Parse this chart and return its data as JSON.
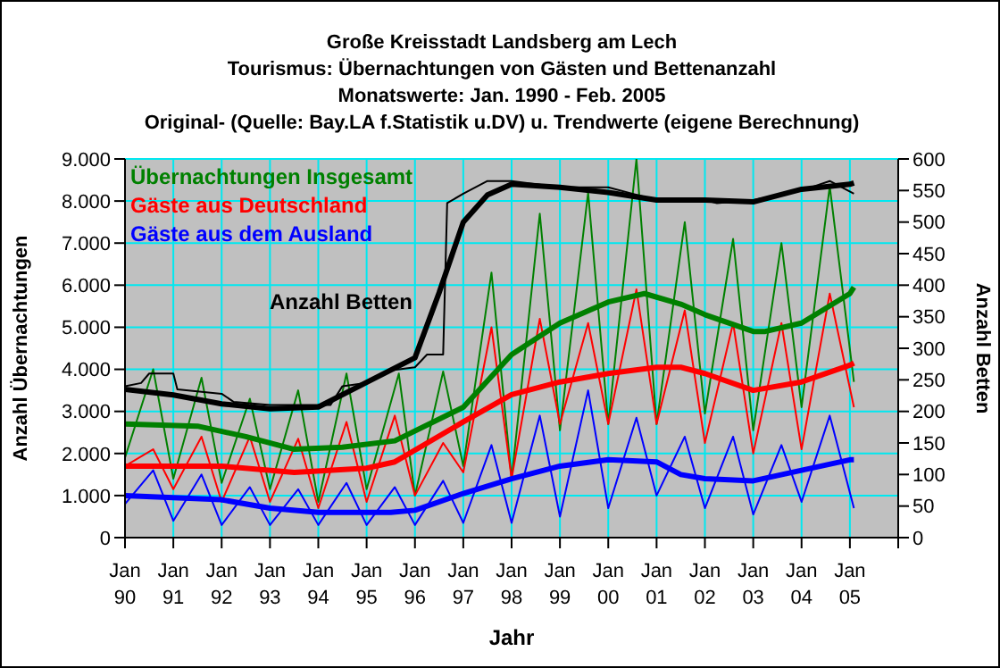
{
  "chart_data": {
    "type": "line",
    "title": "Große Kreisstadt Landsberg am Lech",
    "subtitle": "Tourismus:  Übernachtungen von Gästen und Bettenanzahl\nMonatswerte: Jan. 1990 - Feb. 2005\nOriginal- (Quelle: Bay.LA f.Statistik u.DV) u. Trendwerte (eigene Berechnung)",
    "xlabel": "Jahr",
    "ylabel": "Anzahl Übernachtungen",
    "y2label": "Anzahl Betten",
    "xlim": [
      "1990-01",
      "2006-01"
    ],
    "xticks": [
      {
        "value": "1990-01",
        "label": "Jan 90"
      },
      {
        "value": "1991-01",
        "label": "Jan 91"
      },
      {
        "value": "1992-01",
        "label": "Jan 92"
      },
      {
        "value": "1993-01",
        "label": "Jan 93"
      },
      {
        "value": "1994-01",
        "label": "Jan 94"
      },
      {
        "value": "1995-01",
        "label": "Jan 95"
      },
      {
        "value": "1996-01",
        "label": "Jan 96"
      },
      {
        "value": "1997-01",
        "label": "Jan 97"
      },
      {
        "value": "1998-01",
        "label": "Jan 98"
      },
      {
        "value": "1999-01",
        "label": "Jan 99"
      },
      {
        "value": "2000-01",
        "label": "Jan 00"
      },
      {
        "value": "2001-01",
        "label": "Jan 01"
      },
      {
        "value": "2002-01",
        "label": "Jan 02"
      },
      {
        "value": "2003-01",
        "label": "Jan 03"
      },
      {
        "value": "2004-01",
        "label": "Jan 04"
      },
      {
        "value": "2005-01",
        "label": "Jan 05"
      },
      {
        "value": "2006-01",
        "label": null
      }
    ],
    "ylim": [
      0,
      9000
    ],
    "yticks": [
      0,
      {
        "value": 1000,
        "label": "1.000"
      },
      {
        "value": 2000,
        "label": "2.000"
      },
      {
        "value": 3000,
        "label": "3.000"
      },
      {
        "value": 4000,
        "label": "4.000"
      },
      {
        "value": 5000,
        "label": "5.000"
      },
      {
        "value": 6000,
        "label": "6.000"
      },
      {
        "value": 7000,
        "label": "7.000"
      },
      {
        "value": 8000,
        "label": "8.000"
      },
      {
        "value": 9000,
        "label": "9.000"
      }
    ],
    "y2lim": [
      0,
      600
    ],
    "y2ticks": [
      0,
      50,
      100,
      150,
      200,
      250,
      300,
      350,
      400,
      450,
      500,
      550,
      600
    ],
    "grid": true,
    "legend": "top left",
    "series": [
      {
        "color": "#008000",
        "x": [
          "1990-01",
          "1990-08",
          "1991-01",
          "1991-08",
          "1992-01",
          "1992-08",
          "1993-01",
          "1993-08",
          "1994-01",
          "1994-08",
          "1995-01",
          "1995-09",
          "1996-01",
          "1996-08",
          "1997-01",
          "1997-08",
          "1998-01",
          "1998-08",
          "1999-01",
          "1999-08",
          "2000-01",
          "2000-08",
          "2001-01",
          "2001-08",
          "2002-01",
          "2002-08",
          "2003-01",
          "2003-08",
          "2004-01",
          "2004-08",
          "2005-02"
        ],
        "values": [
          1900,
          4000,
          1400,
          3800,
          1300,
          3300,
          1150,
          3500,
          850,
          3900,
          1150,
          3900,
          1000,
          3950,
          1700,
          6300,
          1400,
          7700,
          2550,
          8200,
          2700,
          9000,
          2700,
          7500,
          2950,
          7100,
          2550,
          7000,
          3100,
          8350,
          3700
        ]
      },
      {
        "color": "#ff0000",
        "x": [
          "1990-01",
          "1990-08",
          "1991-01",
          "1991-08",
          "1992-01",
          "1992-08",
          "1993-01",
          "1993-08",
          "1994-01",
          "1994-08",
          "1995-01",
          "1995-08",
          "1996-01",
          "1996-08",
          "1997-01",
          "1997-08",
          "1998-01",
          "1998-08",
          "1999-01",
          "1999-08",
          "2000-01",
          "2000-08",
          "2001-01",
          "2001-08",
          "2002-01",
          "2002-08",
          "2003-01",
          "2003-08",
          "2004-01",
          "2004-08",
          "2005-02"
        ],
        "values": [
          1700,
          2100,
          1150,
          2400,
          850,
          2400,
          850,
          2350,
          700,
          2750,
          850,
          2900,
          1000,
          2250,
          1550,
          5000,
          1400,
          5200,
          2700,
          5100,
          2700,
          5900,
          2700,
          5400,
          2250,
          5100,
          2000,
          5100,
          2100,
          5800,
          3100
        ]
      },
      {
        "color": "#0000ff",
        "x": [
          "1990-01",
          "1990-08",
          "1991-01",
          "1991-08",
          "1992-01",
          "1992-08",
          "1993-01",
          "1993-08",
          "1994-01",
          "1994-08",
          "1995-01",
          "1995-08",
          "1996-01",
          "1996-08",
          "1997-01",
          "1997-08",
          "1998-01",
          "1998-08",
          "1999-01",
          "1999-08",
          "2000-01",
          "2000-08",
          "2001-01",
          "2001-08",
          "2002-01",
          "2002-08",
          "2003-01",
          "2003-08",
          "2004-01",
          "2004-08",
          "2005-02"
        ],
        "values": [
          800,
          1600,
          400,
          1500,
          300,
          1200,
          300,
          1150,
          300,
          1300,
          300,
          1200,
          300,
          1350,
          350,
          2200,
          350,
          2900,
          500,
          3500,
          700,
          2850,
          1000,
          2400,
          700,
          2400,
          550,
          2200,
          850,
          2900,
          700
        ]
      },
      {
        "color": "#000000",
        "axis": "y2",
        "x": [
          "1990-01",
          "1990-05",
          "1990-07",
          "1991-01",
          "1991-02",
          "1992-01",
          "1992-04",
          "1993-01",
          "1994-01",
          "1994-04",
          "1994-07",
          "1995-01",
          "1995-07",
          "1996-01",
          "1996-04",
          "1996-08",
          "1996-09",
          "1997-01",
          "1997-07",
          "1998-01",
          "1999-01",
          "2000-01",
          "2000-07",
          "2001-01",
          "2002-01",
          "2002-04",
          "2003-01",
          "2004-01",
          "2004-08",
          "2005-02"
        ],
        "values": [
          240,
          245,
          260,
          260,
          235,
          228,
          215,
          210,
          210,
          210,
          240,
          245,
          265,
          270,
          290,
          290,
          530,
          545,
          565,
          565,
          555,
          555,
          545,
          535,
          535,
          530,
          535,
          550,
          565,
          545
        ]
      },
      {
        "name": "Übernachtungen Insgesamt",
        "color": "#008000",
        "x": [
          "1990-01",
          "1991-07",
          "1992-07",
          "1993-07",
          "1994-07",
          "1995-08",
          "1997-01",
          "1998-01",
          "1999-01",
          "2000-01",
          "2000-10",
          "2001-07",
          "2002-01",
          "2003-01",
          "2003-04",
          "2004-01",
          "2005-01",
          "2005-02"
        ],
        "values": [
          2700,
          2650,
          2400,
          2100,
          2150,
          2300,
          3100,
          4350,
          5100,
          5600,
          5800,
          5550,
          5300,
          4900,
          4900,
          5100,
          5800,
          5950
        ]
      },
      {
        "name": "Gäste aus Deutschland",
        "color": "#ff0000",
        "x": [
          "1990-01",
          "1992-01",
          "1993-07",
          "1995-01",
          "1995-08",
          "1997-01",
          "1998-01",
          "1999-01",
          "2000-01",
          "2001-01",
          "2001-07",
          "2002-01",
          "2003-01",
          "2004-01",
          "2005-01",
          "2005-02"
        ],
        "values": [
          1700,
          1700,
          1550,
          1650,
          1800,
          2750,
          3400,
          3700,
          3900,
          4050,
          4050,
          3900,
          3500,
          3700,
          4100,
          4150
        ]
      },
      {
        "name": "Gäste aus dem Ausland",
        "color": "#0000ff",
        "x": [
          "1990-01",
          "1992-01",
          "1993-01",
          "1994-01",
          "1995-07",
          "1996-01",
          "1997-01",
          "1998-01",
          "1999-01",
          "2000-01",
          "2001-01",
          "2001-07",
          "2002-01",
          "2003-01",
          "2004-01",
          "2005-01",
          "2005-02"
        ],
        "values": [
          1000,
          900,
          700,
          600,
          600,
          650,
          1050,
          1400,
          1700,
          1850,
          1800,
          1500,
          1400,
          1350,
          1600,
          1850,
          1850
        ]
      },
      {
        "name": "Anzahl Betten",
        "color": "#000000",
        "axis": "y2",
        "x": [
          "1990-01",
          "1991-01",
          "1992-01",
          "1993-01",
          "1994-01",
          "1995-01",
          "1996-01",
          "1996-07",
          "1997-01",
          "1997-07",
          "1998-01",
          "1999-01",
          "2000-01",
          "2001-01",
          "2002-01",
          "2003-01",
          "2004-01",
          "2005-01",
          "2005-02"
        ],
        "values": [
          235,
          226,
          212,
          204,
          207,
          246,
          285,
          388,
          500,
          543,
          560,
          555,
          547,
          535,
          535,
          532,
          552,
          560,
          562
        ]
      }
    ]
  }
}
